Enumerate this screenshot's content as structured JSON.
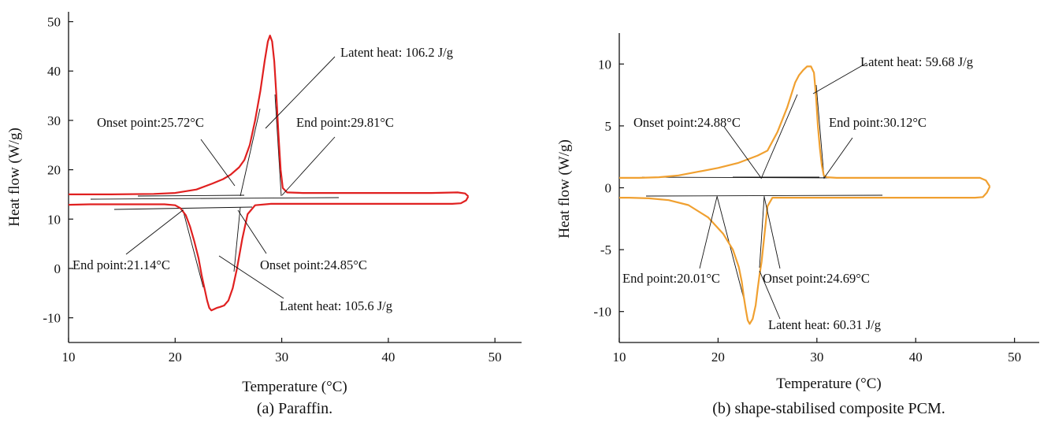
{
  "panels": [
    {
      "caption": "(a) Paraffin.",
      "chart_data": {
        "type": "line",
        "xlabel": "Temperature (°C)",
        "ylabel": "Heat flow (W/g)",
        "xlim": [
          10,
          52.5
        ],
        "ylim": [
          -15,
          52
        ],
        "xticks": [
          10,
          20,
          30,
          40,
          50
        ],
        "yticks": [
          -10,
          0,
          10,
          20,
          30,
          40,
          50
        ],
        "line_color": "#e02020",
        "series": [
          {
            "x": [
              10,
              14,
              18,
              20,
              22,
              23.5,
              24.5,
              25.2,
              26,
              26.5,
              27,
              27.5,
              28,
              28.4,
              28.7,
              28.9,
              29.1,
              29.3,
              29.5,
              29.7,
              29.9,
              30.1,
              30.5,
              32,
              36,
              40,
              44,
              46.5,
              47.2,
              47.5
            ],
            "y": [
              15,
              15,
              15.1,
              15.3,
              16,
              17.2,
              18.1,
              19,
              20.5,
              22,
              25,
              30,
              36,
              42,
              46,
              47.2,
              46,
              42,
              35,
              27,
              20,
              16.3,
              15.4,
              15.3,
              15.3,
              15.3,
              15.3,
              15.4,
              15.2,
              14.6
            ]
          },
          {
            "x": [
              47.5,
              47.3,
              46.8,
              46,
              44,
              40,
              36,
              32,
              29,
              27.5,
              26.8,
              26.3,
              25.8,
              25.4,
              25,
              24.6,
              24.2,
              23.9,
              23.6,
              23.4,
              23.2,
              23,
              22.8,
              22.5,
              22.2,
              21.8,
              21.4,
              21,
              20.5,
              20,
              19,
              18,
              16,
              14,
              12,
              10
            ],
            "y": [
              14.6,
              13.8,
              13.2,
              13.1,
              13.1,
              13.1,
              13.1,
              13.1,
              13.1,
              12.8,
              11,
              6,
              0,
              -4,
              -6.5,
              -7.5,
              -7.8,
              -8,
              -8.3,
              -8.5,
              -8,
              -6.5,
              -4.5,
              -1.5,
              2,
              5.5,
              8.5,
              10.8,
              12.2,
              12.8,
              13,
              13,
              13,
              13,
              13,
              12.9
            ]
          }
        ],
        "annotations": [
          {
            "text": "Latent heat: 106.2 J/g"
          },
          {
            "text": "Onset point:25.72°C"
          },
          {
            "text": "End point:29.81°C"
          },
          {
            "text": "End point:21.14°C"
          },
          {
            "text": "Onset point:24.85°C"
          },
          {
            "text": "Latent heat: 105.6 J/g"
          }
        ]
      }
    },
    {
      "caption": "(b) shape-stabilised composite PCM.",
      "chart_data": {
        "type": "line",
        "xlabel": "Temperature (°C)",
        "ylabel": "Heat flow (W/g)",
        "xlim": [
          10,
          52.5
        ],
        "ylim": [
          -12.5,
          12.5
        ],
        "xticks": [
          10,
          20,
          30,
          40,
          50
        ],
        "yticks": [
          -10,
          -5,
          0,
          5,
          10
        ],
        "line_color": "#f0a030",
        "series": [
          {
            "x": [
              10,
              12,
              14,
              16,
              18,
              20,
              22,
              24,
              25,
              26,
              27,
              27.8,
              28.2,
              28.6,
              29,
              29.4,
              29.7,
              29.9,
              30.1,
              30.3,
              30.5,
              30.7,
              31,
              32,
              36,
              40,
              44,
              46.5,
              47.1,
              47.5
            ],
            "y": [
              0.8,
              0.8,
              0.85,
              1.0,
              1.3,
              1.6,
              2.0,
              2.6,
              3.0,
              4.5,
              6.5,
              8.5,
              9.1,
              9.5,
              9.8,
              9.8,
              9.3,
              7.5,
              5.0,
              3.2,
              1.8,
              1.0,
              0.85,
              0.8,
              0.8,
              0.8,
              0.8,
              0.8,
              0.6,
              0.1
            ]
          },
          {
            "x": [
              47.5,
              47.2,
              46.8,
              46,
              44,
              40,
              36,
              32,
              28,
              25.5,
              25,
              24.8,
              24.6,
              24.4,
              24.2,
              24,
              23.8,
              23.5,
              23.2,
              23,
              22.8,
              22.6,
              22.4,
              22.1,
              21.5,
              20.5,
              19,
              17,
              15,
              13,
              11,
              10
            ],
            "y": [
              0.1,
              -0.4,
              -0.75,
              -0.8,
              -0.8,
              -0.8,
              -0.8,
              -0.8,
              -0.8,
              -0.8,
              -1.5,
              -3.0,
              -4.5,
              -6.0,
              -7.0,
              -8.2,
              -9.5,
              -10.6,
              -11.0,
              -10.7,
              -9.8,
              -8.8,
              -7.6,
              -6.4,
              -5.0,
              -3.7,
              -2.4,
              -1.4,
              -1.0,
              -0.85,
              -0.8,
              -0.8
            ]
          }
        ],
        "annotations": [
          {
            "text": "Latent heat: 59.68 J/g"
          },
          {
            "text": "Onset point:24.88°C"
          },
          {
            "text": "End point:30.12°C"
          },
          {
            "text": "End point:20.01°C"
          },
          {
            "text": "Onset point:24.69°C"
          },
          {
            "text": "Latent heat: 60.31 J/g"
          }
        ]
      }
    }
  ]
}
